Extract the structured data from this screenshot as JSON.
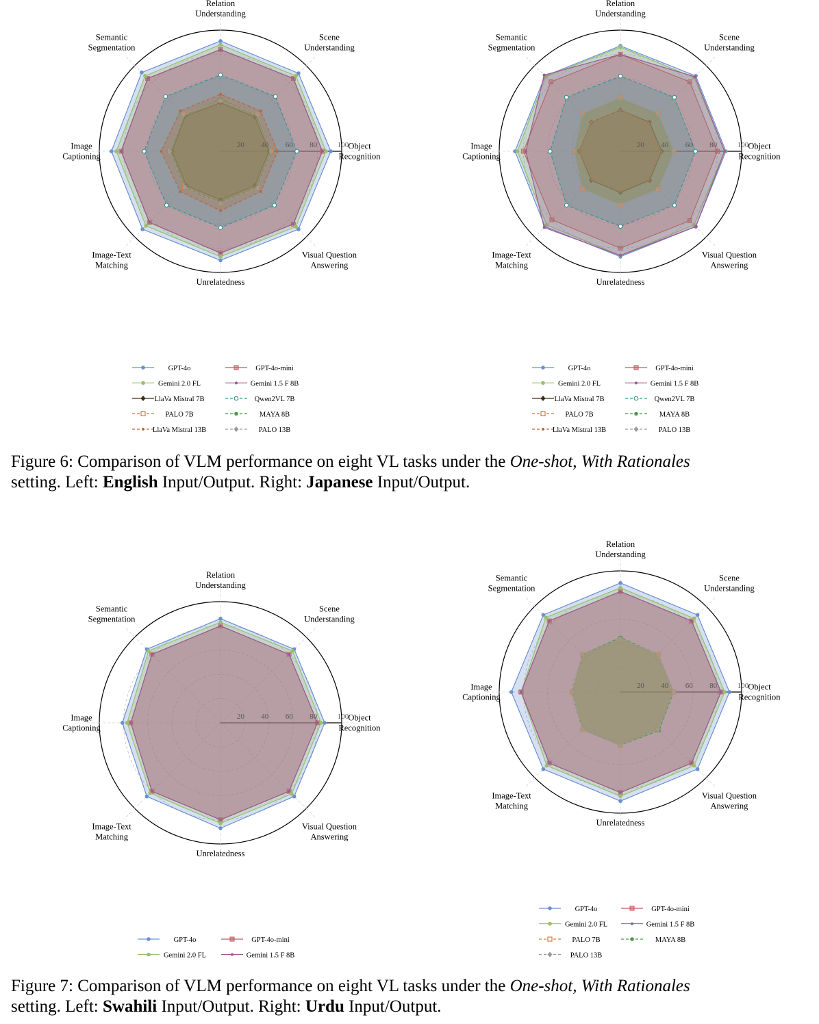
{
  "chart_data": [
    {
      "type": "radar",
      "title": "",
      "axes": [
        "Object Recognition",
        "Scene Understanding",
        "Relation Understanding",
        "Semantic Segmentation",
        "Image Captioning",
        "Image-Text Matching",
        "Unrelatedness",
        "Visual Question Answering"
      ],
      "rlim": [
        0,
        100
      ],
      "r_ticks": [
        "20",
        "40",
        "60",
        "80",
        "100"
      ],
      "series": [
        {
          "name": "GPT-4o",
          "color": "#6b8fd0",
          "values": [
            91,
            91,
            91,
            92,
            90,
            91,
            90,
            91
          ]
        },
        {
          "name": "GPT-4o-mini",
          "color": "#c8535e",
          "values": [
            84,
            85,
            84,
            85,
            82,
            83,
            84,
            85
          ]
        },
        {
          "name": "Gemini 2.0 FL",
          "color": "#98c06a",
          "values": [
            87,
            88,
            88,
            88,
            86,
            87,
            87,
            88
          ]
        },
        {
          "name": "Gemini 1.5 F 8B",
          "color": "#9e5a8e",
          "values": [
            84,
            85,
            84,
            85,
            82,
            83,
            84,
            85
          ]
        },
        {
          "name": "LlaVa Mistral 7B",
          "color": "#3d2c10",
          "values": [
            40,
            40,
            40,
            41,
            40,
            40,
            40,
            40
          ]
        },
        {
          "name": "Qwen2VL 7B",
          "color": "#3d9595",
          "values": [
            63,
            64,
            63,
            64,
            63,
            63,
            63,
            63
          ]
        },
        {
          "name": "PALO 7B",
          "color": "#e07a35",
          "values": [
            42,
            43,
            42,
            43,
            42,
            42,
            43,
            43
          ]
        },
        {
          "name": "MAYA 8B",
          "color": "#4a9c48",
          "values": [
            42,
            42,
            43,
            42,
            41,
            42,
            42,
            42
          ]
        },
        {
          "name": "LlaVa Mistral 13B",
          "color": "#b56a3e",
          "values": [
            47,
            47,
            47,
            47,
            49,
            47,
            49,
            47
          ]
        },
        {
          "name": "PALO 13B",
          "color": "#9a9a9a",
          "values": [
            42,
            43,
            42,
            43,
            42,
            42,
            43,
            43
          ]
        }
      ]
    },
    {
      "type": "radar",
      "title": "",
      "axes": [
        "Object Recognition",
        "Scene Understanding",
        "Relation Understanding",
        "Semantic Segmentation",
        "Image Captioning",
        "Image-Text Matching",
        "Unrelatedness",
        "Visual Question Answering"
      ],
      "rlim": [
        0,
        100
      ],
      "r_ticks": [
        "20",
        "40",
        "60",
        "80",
        "100"
      ],
      "series": [
        {
          "name": "GPT-4o",
          "color": "#6b8fd0",
          "values": [
            87,
            88,
            87,
            88,
            87,
            88,
            87,
            88
          ]
        },
        {
          "name": "GPT-4o-mini",
          "color": "#c8535e",
          "values": [
            80,
            81,
            80,
            81,
            80,
            80,
            80,
            81
          ]
        },
        {
          "name": "Gemini 2.0 FL",
          "color": "#98c06a",
          "values": [
            86,
            86,
            86,
            87,
            85,
            86,
            86,
            86
          ]
        },
        {
          "name": "Gemini 1.5 F 8B",
          "color": "#9e5a8e",
          "values": [
            86,
            87,
            80,
            89,
            78,
            89,
            86,
            88
          ]
        },
        {
          "name": "LlaVa Mistral 7B",
          "color": "#3d2c10",
          "values": [
            34,
            34,
            34,
            34,
            34,
            34,
            34,
            34
          ]
        },
        {
          "name": "Qwen2VL 7B",
          "color": "#3d9595",
          "values": [
            62,
            63,
            62,
            63,
            58,
            63,
            62,
            63
          ]
        },
        {
          "name": "PALO 7B",
          "color": "#e07a35",
          "values": [
            44,
            44,
            44,
            44,
            38,
            44,
            44,
            44
          ]
        },
        {
          "name": "MAYA 8B",
          "color": "#4a9c48",
          "values": [
            44,
            44,
            44,
            44,
            38,
            44,
            44,
            44
          ]
        },
        {
          "name": "LlaVa Mistral 13B",
          "color": "#b56a3e",
          "values": [
            33,
            33,
            34,
            34,
            34,
            33,
            33,
            33
          ]
        },
        {
          "name": "PALO 13B",
          "color": "#9a9a9a",
          "values": [
            44,
            44,
            44,
            44,
            38,
            44,
            44,
            44
          ]
        }
      ]
    },
    {
      "type": "radar",
      "title": "",
      "axes": [
        "Object Recognition",
        "Scene Understanding",
        "Relation Understanding",
        "Semantic Segmentation",
        "Image Captioning",
        "Image-Text Matching",
        "Unrelatedness",
        "Visual Question Answering"
      ],
      "rlim": [
        0,
        100
      ],
      "r_ticks": [
        "20",
        "40",
        "60",
        "80",
        "100"
      ],
      "series": [
        {
          "name": "GPT-4o",
          "color": "#6b8fd0",
          "values": [
            86,
            86,
            86,
            86,
            81,
            86,
            87,
            86
          ]
        },
        {
          "name": "GPT-4o-mini",
          "color": "#c8535e",
          "values": [
            80,
            80,
            80,
            80,
            74,
            80,
            80,
            80
          ]
        },
        {
          "name": "Gemini 2.0 FL",
          "color": "#98c06a",
          "values": [
            83,
            84,
            83,
            84,
            77,
            82,
            83,
            83
          ]
        },
        {
          "name": "Gemini 1.5 F 8B",
          "color": "#9e5a8e",
          "values": [
            80,
            80,
            80,
            80,
            74,
            80,
            80,
            80
          ]
        }
      ]
    },
    {
      "type": "radar",
      "title": "",
      "axes": [
        "Object Recognition",
        "Scene Understanding",
        "Relation Understanding",
        "Semantic Segmentation",
        "Image Captioning",
        "Image-Text Matching",
        "Unrelatedness",
        "Visual Question Answering"
      ],
      "rlim": [
        0,
        100
      ],
      "r_ticks": [
        "20",
        "40",
        "60",
        "80",
        "100"
      ],
      "series": [
        {
          "name": "GPT-4o",
          "color": "#6b8fd0",
          "values": [
            90,
            90,
            90,
            90,
            90,
            90,
            90,
            90
          ]
        },
        {
          "name": "GPT-4o-mini",
          "color": "#c8535e",
          "values": [
            83,
            83,
            83,
            83,
            82,
            83,
            83,
            83
          ]
        },
        {
          "name": "Gemini 2.0 FL",
          "color": "#98c06a",
          "values": [
            86,
            86,
            86,
            87,
            82,
            86,
            86,
            86
          ]
        },
        {
          "name": "Gemini 1.5 F 8B",
          "color": "#9e5a8e",
          "values": [
            83,
            83,
            83,
            83,
            82,
            83,
            83,
            83
          ]
        },
        {
          "name": "PALO 7B",
          "color": "#e07a35",
          "values": [
            44,
            44,
            44,
            44,
            40,
            44,
            44,
            44
          ]
        },
        {
          "name": "MAYA 8B",
          "color": "#4a9c48",
          "values": [
            44,
            44,
            45,
            44,
            40,
            44,
            44,
            45
          ]
        },
        {
          "name": "PALO 13B",
          "color": "#9a9a9a",
          "values": [
            44,
            44,
            44,
            44,
            40,
            44,
            44,
            44
          ]
        }
      ]
    }
  ],
  "figure6": {
    "prefix": "Figure 6: Comparison of VLM performance on eight VL tasks under the ",
    "setting": "One-shot, With Rationales",
    "line2_a": "setting. Left: ",
    "left_lang": "English",
    "line2_b": " Input/Output. Right: ",
    "right_lang": "Japanese",
    "line2_c": " Input/Output."
  },
  "figure7": {
    "prefix": "Figure 7: Comparison of VLM performance on eight VL tasks under the ",
    "setting": "One-shot, With Rationales",
    "line2_a": "setting. Left: ",
    "left_lang": "Swahili",
    "line2_b": " Input/Output. Right: ",
    "right_lang": "Urdu",
    "line2_c": " Input/Output."
  }
}
